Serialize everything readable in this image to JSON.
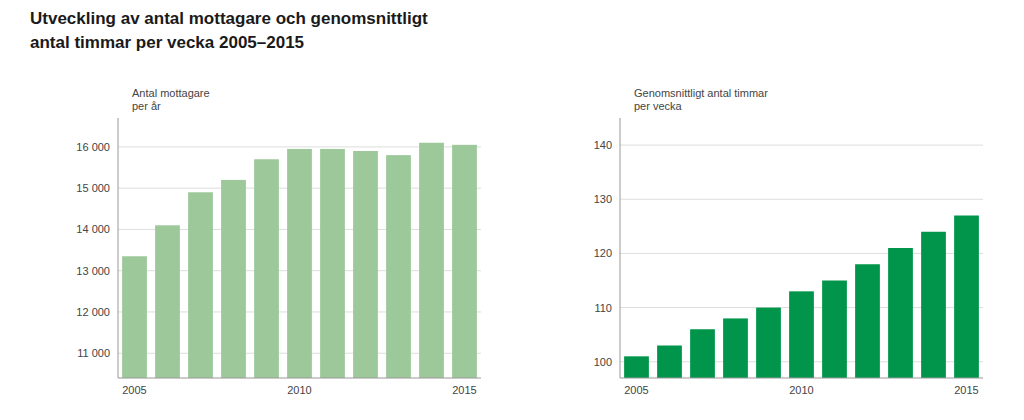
{
  "chart_data": [
    {
      "type": "bar",
      "title": "Utveckling av antal mottagare och genomsnittligt\nantal timmar per vecka 2005–2015",
      "y_label": "Antal mottagare\nper år",
      "categories": [
        "2005",
        null,
        null,
        null,
        null,
        "2010",
        null,
        null,
        null,
        null,
        "2015"
      ],
      "values": [
        13350,
        14100,
        14900,
        15200,
        15700,
        15950,
        15950,
        15900,
        15800,
        16100,
        16050
      ],
      "color": "#9dc89a",
      "ylim": [
        10400,
        16700
      ],
      "yticks": [
        {
          "value": 11000,
          "label": "11 000"
        },
        {
          "value": 12000,
          "label": "12 000"
        },
        {
          "value": 13000,
          "label": "13 000"
        },
        {
          "value": 14000,
          "label": "14 000"
        },
        {
          "value": 15000,
          "label": "15 000"
        },
        {
          "value": 16000,
          "label": "16 000"
        }
      ],
      "grid": true
    },
    {
      "type": "bar",
      "y_label": "Genomsnittligt antal timmar\nper vecka",
      "categories": [
        "2005",
        null,
        null,
        null,
        null,
        "2010",
        null,
        null,
        null,
        null,
        "2015"
      ],
      "values": [
        101,
        103,
        106,
        108,
        110,
        113,
        115,
        118,
        121,
        124,
        127
      ],
      "color": "#00954a",
      "ylim": [
        97,
        145
      ],
      "yticks": [
        100,
        110,
        120,
        130,
        140
      ],
      "grid": true
    }
  ]
}
